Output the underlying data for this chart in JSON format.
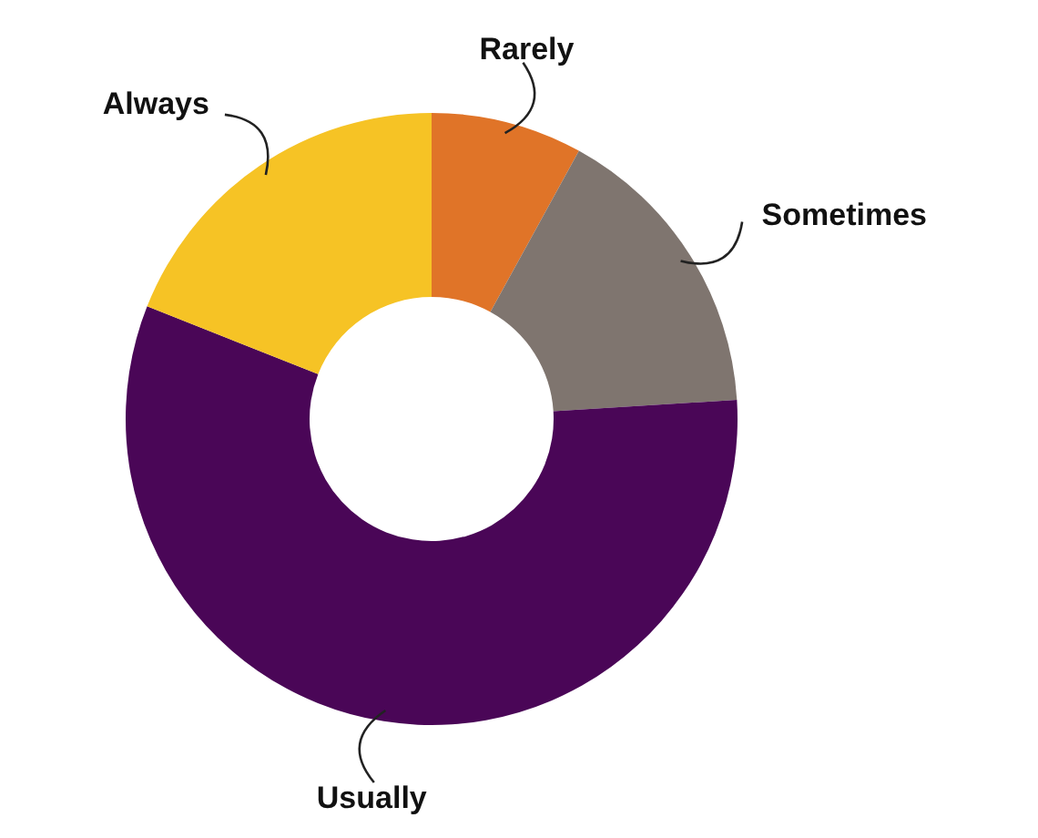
{
  "chart_data": {
    "type": "donut",
    "categories": [
      "Rarely",
      "Sometimes",
      "Usually",
      "Always"
    ],
    "values": [
      8,
      16,
      57,
      19
    ],
    "colors": [
      "#e07428",
      "#7f756f",
      "#4a0657",
      "#f6c325"
    ],
    "legend": false
  }
}
